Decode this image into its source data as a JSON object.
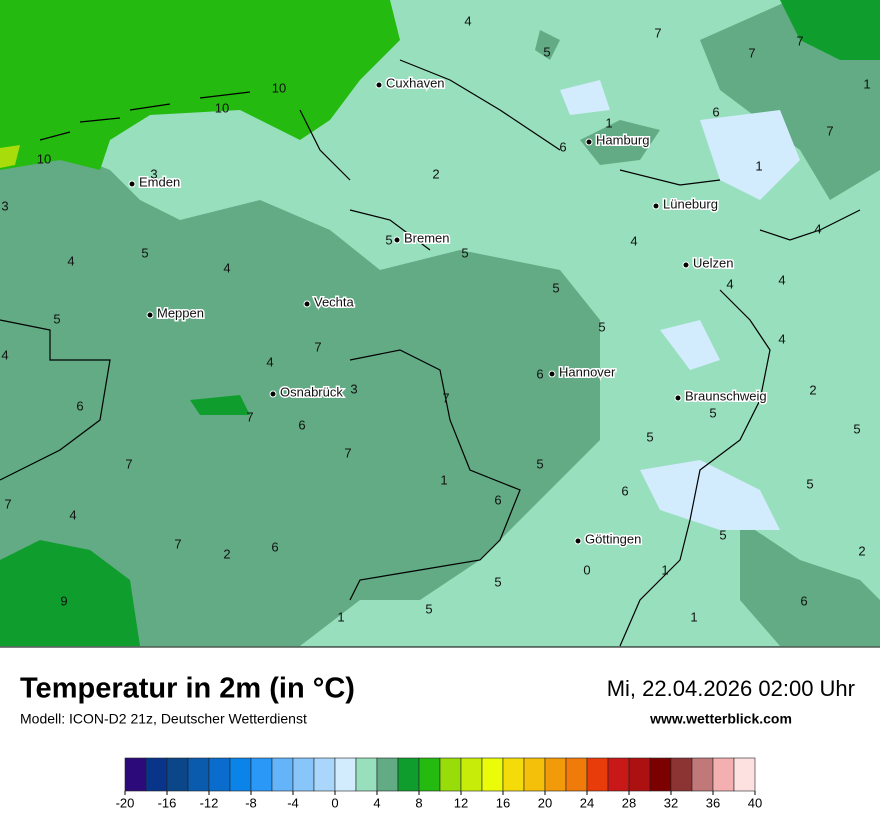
{
  "header": {
    "title": "Temperatur in 2m (in °C)",
    "subtitle": "Modell: ICON-D2 21z, Deutscher Wetterdienst",
    "date": "Mi, 22.04.2026 02:00 Uhr",
    "source": "www.wetterblick.com"
  },
  "cities": [
    "Cuxhaven",
    "Hamburg",
    "Emden",
    "Lüneburg",
    "Bremen",
    "Uelzen",
    "Vechta",
    "Meppen",
    "Hannover",
    "Osnabrück",
    "Braunschweig",
    "Göttingen"
  ],
  "isolines": [
    4,
    5,
    7,
    7,
    7,
    1,
    10,
    10,
    10,
    1,
    6,
    7,
    6,
    1,
    3,
    2,
    3,
    4,
    4,
    5,
    5,
    5,
    4,
    4,
    4,
    4,
    5,
    5,
    5,
    4,
    4,
    7,
    4,
    6,
    3,
    2,
    6,
    7,
    7,
    5,
    6,
    5,
    5,
    7,
    5,
    7,
    1,
    5,
    6,
    6,
    7,
    4,
    7,
    2,
    6,
    5,
    2,
    1,
    0,
    5,
    9,
    5,
    6,
    1,
    1
  ],
  "legend": {
    "ticks": [
      -20,
      -16,
      -12,
      -8,
      -4,
      0,
      4,
      8,
      12,
      16,
      20,
      24,
      28,
      32,
      36,
      40
    ],
    "colors": [
      "#2d0a7a",
      "#08358a",
      "#0a4688",
      "#0a5aae",
      "#0a6ccc",
      "#0a84e8",
      "#2a98f6",
      "#64b4fa",
      "#88c6fa",
      "#aad6fc",
      "#d2ebfd",
      "#98dfbd",
      "#62ab84",
      "#0f9e2e",
      "#24ba10",
      "#98dc0a",
      "#c8ec0a",
      "#eafc0a",
      "#f4dc0a",
      "#f4c00a",
      "#f29a0a",
      "#f07a0a",
      "#e83c0a",
      "#c81818",
      "#ac1010",
      "#7c0000",
      "#8c3434",
      "#c07878",
      "#f4b0b0",
      "#fde0e0"
    ]
  }
}
